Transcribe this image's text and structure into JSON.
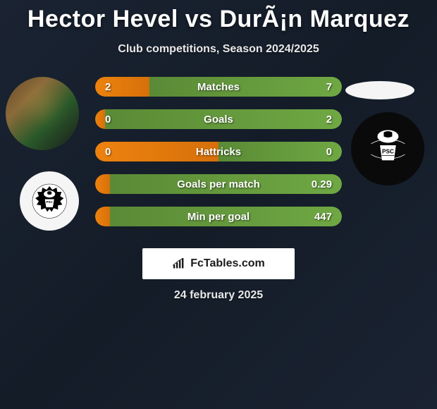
{
  "header": {
    "title": "Hector Hevel vs DurÃ¡n Marquez",
    "subtitle": "Club competitions, Season 2024/2025"
  },
  "stats": {
    "rows": [
      {
        "label": "Matches",
        "left": "2",
        "right": "7",
        "left_pct": 22,
        "right_pct": 78
      },
      {
        "label": "Goals",
        "left": "0",
        "right": "2",
        "left_pct": 4,
        "right_pct": 96
      },
      {
        "label": "Hattricks",
        "left": "0",
        "right": "0",
        "left_pct": 50,
        "right_pct": 50
      },
      {
        "label": "Goals per match",
        "left": "",
        "right": "0.29",
        "left_pct": 6,
        "right_pct": 94
      },
      {
        "label": "Min per goal",
        "left": "",
        "right": "447",
        "left_pct": 6,
        "right_pct": 94
      }
    ],
    "row_bg": "#1a2430",
    "left_color": "#ed820e",
    "right_color": "#6fa843",
    "left_accent": "#d6700a",
    "right_accent": "#5a8a36"
  },
  "watermark": {
    "text": "FcTables.com"
  },
  "date": "24 february 2025",
  "logos": {
    "club_name": "PORTIMONENSE"
  },
  "colors": {
    "title": "#ffffff",
    "subtitle": "#e8e8e8"
  }
}
